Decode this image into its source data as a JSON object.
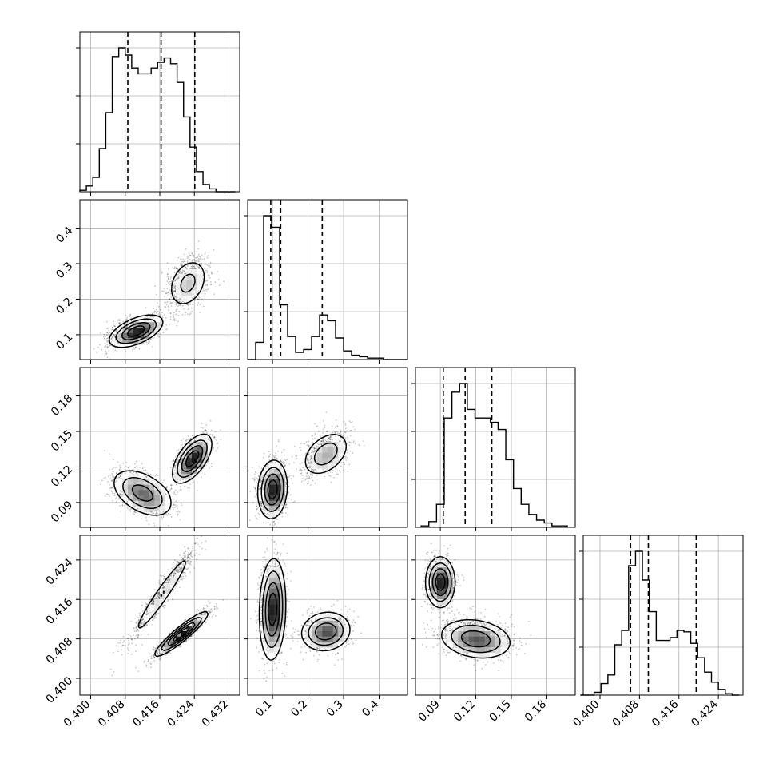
{
  "chart_data": {
    "type": "corner",
    "grid": true,
    "parameters": [
      {
        "range": [
          0.3975,
          0.4345
        ],
        "ticks": [
          0.4,
          0.408,
          0.416,
          0.424,
          0.432
        ],
        "tick_labels": [
          "0.400",
          "0.408",
          "0.416",
          "0.424",
          "0.432"
        ],
        "quantiles": [
          0.4086,
          0.4163,
          0.4241
        ],
        "histogram": {
          "edges": [
            0.3975,
            0.399,
            0.4005,
            0.402,
            0.4035,
            0.405,
            0.4065,
            0.408,
            0.4095,
            0.411,
            0.4125,
            0.414,
            0.4155,
            0.417,
            0.4185,
            0.42,
            0.4215,
            0.423,
            0.4245,
            0.426,
            0.4275,
            0.429,
            0.4305,
            0.432,
            0.4335
          ],
          "counts": [
            0.01,
            0.04,
            0.1,
            0.3,
            0.55,
            0.94,
            1.0,
            0.95,
            0.86,
            0.82,
            0.82,
            0.86,
            0.9,
            0.93,
            0.89,
            0.76,
            0.52,
            0.31,
            0.14,
            0.05,
            0.02,
            0.0,
            0.0,
            0.0
          ]
        },
        "gaussian_modes": [
          {
            "mu": 0.4105,
            "sigma": 0.0032,
            "w": 0.5
          },
          {
            "mu": 0.4225,
            "sigma": 0.003,
            "w": 0.5
          }
        ]
      },
      {
        "range": [
          0.03,
          0.48
        ],
        "ticks": [
          0.1,
          0.2,
          0.3,
          0.4
        ],
        "tick_labels": [
          "0.1",
          "0.2",
          "0.3",
          "0.4"
        ],
        "quantiles": [
          0.095,
          0.123,
          0.24
        ],
        "histogram": {
          "edges": [
            0.03,
            0.0525,
            0.075,
            0.0975,
            0.12,
            0.1425,
            0.165,
            0.1875,
            0.21,
            0.2325,
            0.255,
            0.2775,
            0.3,
            0.3225,
            0.345,
            0.3675,
            0.39,
            0.4125,
            0.435,
            0.4575,
            0.48
          ],
          "counts": [
            0.0,
            0.12,
            1.0,
            0.92,
            0.38,
            0.16,
            0.05,
            0.07,
            0.16,
            0.31,
            0.27,
            0.15,
            0.06,
            0.03,
            0.02,
            0.01,
            0.01,
            0.0,
            0.0,
            0.0
          ]
        },
        "gaussian_modes": [
          {
            "mu": 0.1,
            "sigma": 0.022,
            "w": 0.62
          },
          {
            "mu": 0.245,
            "sigma": 0.038,
            "w": 0.38
          }
        ]
      },
      {
        "range": [
          0.069,
          0.204
        ],
        "ticks": [
          0.09,
          0.12,
          0.15,
          0.18
        ],
        "tick_labels": [
          "0.09",
          "0.12",
          "0.15",
          "0.18"
        ],
        "quantiles": [
          0.0925,
          0.111,
          0.1335
        ],
        "histogram": {
          "edges": [
            0.0738,
            0.0803,
            0.0868,
            0.0933,
            0.0998,
            0.1063,
            0.1128,
            0.1193,
            0.1258,
            0.1323,
            0.1388,
            0.1453,
            0.1518,
            0.1583,
            0.1648,
            0.1713,
            0.1778,
            0.1843,
            0.1908,
            0.1973
          ],
          "counts": [
            0.01,
            0.04,
            0.16,
            0.76,
            0.94,
            1.0,
            0.82,
            0.76,
            0.76,
            0.73,
            0.68,
            0.47,
            0.27,
            0.16,
            0.09,
            0.05,
            0.03,
            0.01,
            0.01
          ]
        },
        "gaussian_modes": [
          {
            "mu": 0.103,
            "sigma": 0.011,
            "w": 0.55
          },
          {
            "mu": 0.127,
            "sigma": 0.012,
            "w": 0.45
          }
        ]
      },
      {
        "range": [
          0.3966,
          0.429
        ],
        "ticks": [
          0.4,
          0.408,
          0.416,
          0.424
        ],
        "tick_labels": [
          "0.400",
          "0.408",
          "0.416",
          "0.424"
        ],
        "quantiles": [
          0.4062,
          0.4098,
          0.4195
        ],
        "histogram": {
          "edges": [
            0.396,
            0.3974,
            0.3988,
            0.4002,
            0.4016,
            0.403,
            0.4044,
            0.4058,
            0.4072,
            0.4086,
            0.41,
            0.4114,
            0.4128,
            0.4142,
            0.4156,
            0.417,
            0.4184,
            0.4198,
            0.4212,
            0.4226,
            0.424,
            0.4254,
            0.4268,
            0.4282
          ],
          "counts": [
            0.0,
            0.0,
            0.02,
            0.08,
            0.14,
            0.35,
            0.45,
            0.9,
            1.0,
            0.8,
            0.58,
            0.38,
            0.38,
            0.4,
            0.45,
            0.44,
            0.36,
            0.26,
            0.16,
            0.09,
            0.04,
            0.01,
            0.0
          ]
        },
        "gaussian_modes": [
          {
            "mu": 0.4078,
            "sigma": 0.0022,
            "w": 0.6
          },
          {
            "mu": 0.4198,
            "sigma": 0.003,
            "w": 0.4
          }
        ]
      }
    ],
    "pairs": [
      {
        "x_param": 0,
        "y_param": 1,
        "clusters": [
          {
            "mx": 0.4105,
            "my": 0.11,
            "sx": 0.003,
            "sy": 0.022,
            "rho": 0.55,
            "w": 0.62
          },
          {
            "mx": 0.4225,
            "my": 0.245,
            "sx": 0.0025,
            "sy": 0.038,
            "rho": 0.3,
            "w": 0.38
          }
        ]
      },
      {
        "x_param": 0,
        "y_param": 2,
        "clusters": [
          {
            "mx": 0.412,
            "my": 0.098,
            "sx": 0.0035,
            "sy": 0.01,
            "rho": -0.45,
            "w": 0.55
          },
          {
            "mx": 0.4235,
            "my": 0.127,
            "sx": 0.0022,
            "sy": 0.01,
            "rho": 0.6,
            "w": 0.45
          }
        ]
      },
      {
        "x_param": 0,
        "y_param": 3,
        "clusters": [
          {
            "mx": 0.4165,
            "my": 0.417,
            "sx": 0.004,
            "sy": 0.005,
            "rho": 0.96,
            "w": 0.4
          },
          {
            "mx": 0.421,
            "my": 0.409,
            "sx": 0.003,
            "sy": 0.0022,
            "rho": 0.92,
            "w": 0.6
          }
        ]
      },
      {
        "x_param": 1,
        "y_param": 2,
        "clusters": [
          {
            "mx": 0.1,
            "my": 0.101,
            "sx": 0.02,
            "sy": 0.012,
            "rho": 0.1,
            "w": 0.62
          },
          {
            "mx": 0.25,
            "my": 0.131,
            "sx": 0.035,
            "sy": 0.01,
            "rho": 0.4,
            "w": 0.38
          }
        ]
      },
      {
        "x_param": 1,
        "y_param": 3,
        "clusters": [
          {
            "mx": 0.1,
            "my": 0.414,
            "sx": 0.018,
            "sy": 0.005,
            "rho": 0.1,
            "w": 0.62
          },
          {
            "mx": 0.25,
            "my": 0.4095,
            "sx": 0.035,
            "sy": 0.002,
            "rho": 0.1,
            "w": 0.38
          }
        ]
      },
      {
        "x_param": 2,
        "y_param": 3,
        "clusters": [
          {
            "mx": 0.09,
            "my": 0.4195,
            "sx": 0.006,
            "sy": 0.0025,
            "rho": 0.0,
            "w": 0.4
          },
          {
            "mx": 0.12,
            "my": 0.408,
            "sx": 0.015,
            "sy": 0.002,
            "rho": -0.2,
            "w": 0.6
          }
        ]
      }
    ]
  }
}
